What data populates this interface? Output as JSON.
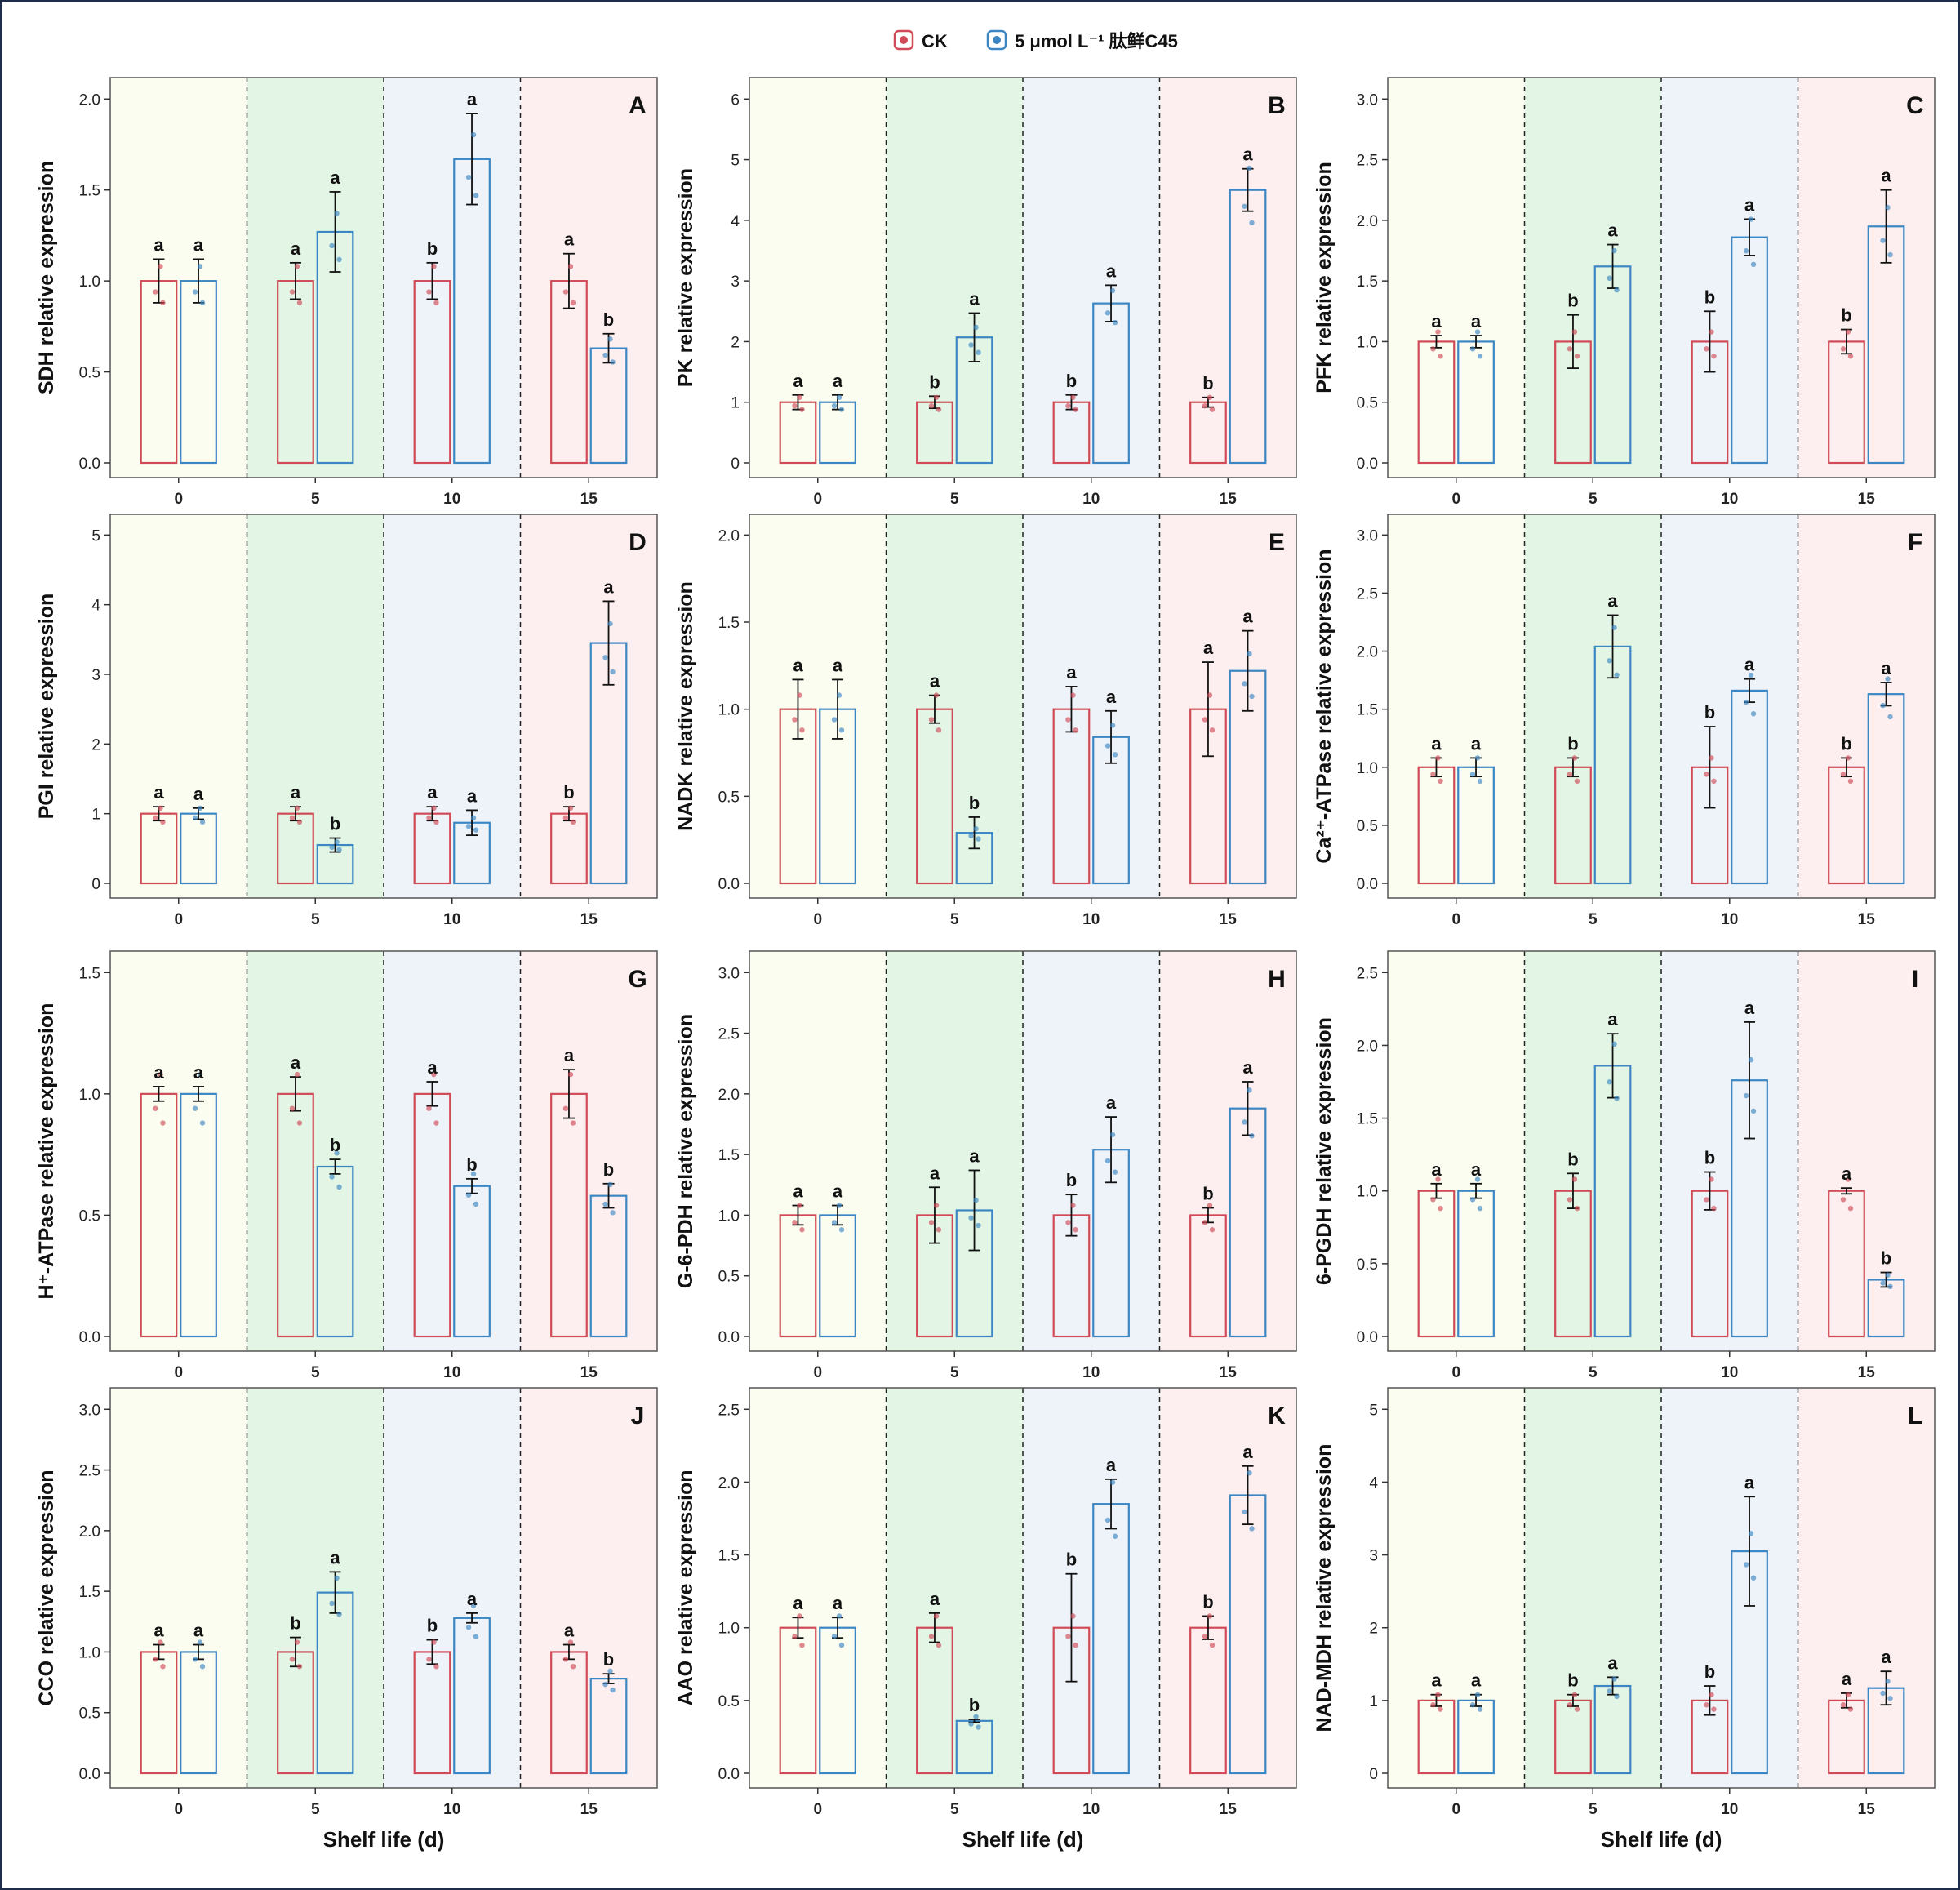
{
  "legend": {
    "items": [
      {
        "label": "CK",
        "color": "#d04a57"
      },
      {
        "label": "5 μmol L⁻¹ 肽鲜C45",
        "color": "#3c87c3"
      }
    ]
  },
  "colors": {
    "ck": "#d04a57",
    "treat": "#3c87c3",
    "bg0": "#fbfdf0",
    "bg5": "#e3f6e5",
    "bg10": "#eef3fa",
    "bg15": "#fdefef",
    "frame": "#1f2d4a"
  },
  "chart_data": [
    {
      "type": "bar",
      "panel": "A",
      "gene": "SDH",
      "title": "A",
      "xlabel": "",
      "ylabel": "SDH relative expression",
      "ylim": [
        0,
        2.1
      ],
      "ticks": [
        "0.0",
        "0.5",
        "1.0",
        "1.5",
        "2.0"
      ],
      "categories": [
        "0",
        "5",
        "10",
        "15"
      ],
      "series": [
        {
          "name": "CK",
          "values": [
            1.0,
            1.0,
            1.0,
            1.0
          ],
          "errors": [
            0.12,
            0.1,
            0.1,
            0.15
          ],
          "letters": [
            "a",
            "a",
            "b",
            "a"
          ]
        },
        {
          "name": "5 μmol L⁻¹ 肽鲜C45",
          "values": [
            1.0,
            1.27,
            1.67,
            0.63
          ],
          "errors": [
            0.12,
            0.22,
            0.25,
            0.08
          ],
          "letters": [
            "a",
            "a",
            "a",
            "b"
          ]
        }
      ]
    },
    {
      "type": "bar",
      "panel": "B",
      "gene": "PK",
      "title": "B",
      "xlabel": "",
      "ylabel": "PK relative expression",
      "ylim": [
        0,
        6.3
      ],
      "ticks": [
        "0",
        "1",
        "2",
        "3",
        "4",
        "5",
        "6"
      ],
      "categories": [
        "0",
        "5",
        "10",
        "15"
      ],
      "series": [
        {
          "name": "CK",
          "values": [
            1.0,
            1.0,
            1.0,
            1.0
          ],
          "errors": [
            0.12,
            0.1,
            0.12,
            0.08
          ],
          "letters": [
            "a",
            "b",
            "b",
            "b"
          ]
        },
        {
          "name": "5 μmol L⁻¹ 肽鲜C45",
          "values": [
            1.0,
            2.07,
            2.63,
            4.5
          ],
          "errors": [
            0.12,
            0.4,
            0.3,
            0.35
          ],
          "letters": [
            "a",
            "a",
            "a",
            "a"
          ]
        }
      ]
    },
    {
      "type": "bar",
      "panel": "C",
      "gene": "PFK",
      "title": "C",
      "xlabel": "",
      "ylabel": "PFK relative expression",
      "ylim": [
        0,
        3.15
      ],
      "ticks": [
        "0.0",
        "0.5",
        "1.0",
        "1.5",
        "2.0",
        "2.5",
        "3.0"
      ],
      "categories": [
        "0",
        "5",
        "10",
        "15"
      ],
      "series": [
        {
          "name": "CK",
          "values": [
            1.0,
            1.0,
            1.0,
            1.0
          ],
          "errors": [
            0.05,
            0.22,
            0.25,
            0.1
          ],
          "letters": [
            "a",
            "b",
            "b",
            "b"
          ]
        },
        {
          "name": "5 μmol L⁻¹ 肽鲜C45",
          "values": [
            1.0,
            1.62,
            1.86,
            1.95
          ],
          "errors": [
            0.05,
            0.18,
            0.15,
            0.3
          ],
          "letters": [
            "a",
            "a",
            "a",
            "a"
          ]
        }
      ]
    },
    {
      "type": "bar",
      "panel": "D",
      "gene": "PGI",
      "title": "D",
      "xlabel": "",
      "ylabel": "PGI relative expression",
      "ylim": [
        0,
        5.25
      ],
      "ticks": [
        "0",
        "1",
        "2",
        "3",
        "4",
        "5"
      ],
      "categories": [
        "0",
        "5",
        "10",
        "15"
      ],
      "series": [
        {
          "name": "CK",
          "values": [
            1.0,
            1.0,
            1.0,
            1.0
          ],
          "errors": [
            0.1,
            0.1,
            0.1,
            0.1
          ],
          "letters": [
            "a",
            "a",
            "a",
            "b"
          ]
        },
        {
          "name": "5 μmol L⁻¹ 肽鲜C45",
          "values": [
            1.0,
            0.55,
            0.87,
            3.45
          ],
          "errors": [
            0.08,
            0.1,
            0.18,
            0.6
          ],
          "letters": [
            "a",
            "b",
            "a",
            "a"
          ]
        }
      ]
    },
    {
      "type": "bar",
      "panel": "E",
      "gene": "NADK",
      "title": "E",
      "xlabel": "",
      "ylabel": "NADK relative expression",
      "ylim": [
        0,
        2.1
      ],
      "ticks": [
        "0.0",
        "0.5",
        "1.0",
        "1.5",
        "2.0"
      ],
      "categories": [
        "0",
        "5",
        "10",
        "15"
      ],
      "series": [
        {
          "name": "CK",
          "values": [
            1.0,
            1.0,
            1.0,
            1.0
          ],
          "errors": [
            0.17,
            0.08,
            0.13,
            0.27
          ],
          "letters": [
            "a",
            "a",
            "a",
            "a"
          ]
        },
        {
          "name": "5 μmol L⁻¹ 肽鲜C45",
          "values": [
            1.0,
            0.29,
            0.84,
            1.22
          ],
          "errors": [
            0.17,
            0.09,
            0.15,
            0.23
          ],
          "letters": [
            "a",
            "b",
            "a",
            "a"
          ]
        }
      ]
    },
    {
      "type": "bar",
      "panel": "F",
      "gene": "Ca²⁺-ATPase",
      "title": "F",
      "xlabel": "",
      "ylabel": "Ca²⁺-ATPase relative expression",
      "ylim": [
        0,
        3.15
      ],
      "ticks": [
        "0.0",
        "0.5",
        "1.0",
        "1.5",
        "2.0",
        "2.5",
        "3.0"
      ],
      "categories": [
        "0",
        "5",
        "10",
        "15"
      ],
      "series": [
        {
          "name": "CK",
          "values": [
            1.0,
            1.0,
            1.0,
            1.0
          ],
          "errors": [
            0.08,
            0.08,
            0.35,
            0.08
          ],
          "letters": [
            "a",
            "b",
            "b",
            "b"
          ]
        },
        {
          "name": "5 μmol L⁻¹ 肽鲜C45",
          "values": [
            1.0,
            2.04,
            1.66,
            1.63
          ],
          "errors": [
            0.08,
            0.27,
            0.1,
            0.1
          ],
          "letters": [
            "a",
            "a",
            "a",
            "a"
          ]
        }
      ]
    },
    {
      "type": "bar",
      "panel": "G",
      "gene": "H⁺-ATPase",
      "title": "G",
      "xlabel": "",
      "ylabel": "H⁺-ATPase relative expression",
      "ylim": [
        0,
        1.575
      ],
      "ticks": [
        "0.0",
        "0.5",
        "1.0",
        "1.5"
      ],
      "categories": [
        "0",
        "5",
        "10",
        "15"
      ],
      "series": [
        {
          "name": "CK",
          "values": [
            1.0,
            1.0,
            1.0,
            1.0
          ],
          "errors": [
            0.03,
            0.07,
            0.05,
            0.1
          ],
          "letters": [
            "a",
            "a",
            "a",
            "a"
          ]
        },
        {
          "name": "5 μmol L⁻¹ 肽鲜C45",
          "values": [
            1.0,
            0.7,
            0.62,
            0.58
          ],
          "errors": [
            0.03,
            0.03,
            0.03,
            0.05
          ],
          "letters": [
            "a",
            "b",
            "b",
            "b"
          ]
        }
      ]
    },
    {
      "type": "bar",
      "panel": "H",
      "gene": "G-6-PDH",
      "title": "H",
      "xlabel": "",
      "ylabel": "G-6-PDH relative expression",
      "ylim": [
        0,
        3.15
      ],
      "ticks": [
        "0.0",
        "0.5",
        "1.0",
        "1.5",
        "2.0",
        "2.5",
        "3.0"
      ],
      "categories": [
        "0",
        "5",
        "10",
        "15"
      ],
      "series": [
        {
          "name": "CK",
          "values": [
            1.0,
            1.0,
            1.0,
            1.0
          ],
          "errors": [
            0.08,
            0.23,
            0.17,
            0.06
          ],
          "letters": [
            "a",
            "a",
            "b",
            "b"
          ]
        },
        {
          "name": "5 μmol L⁻¹ 肽鲜C45",
          "values": [
            1.0,
            1.04,
            1.54,
            1.88
          ],
          "errors": [
            0.08,
            0.33,
            0.27,
            0.22
          ],
          "letters": [
            "a",
            "a",
            "a",
            "a"
          ]
        }
      ]
    },
    {
      "type": "bar",
      "panel": "I",
      "gene": "6-PGDH",
      "title": "I",
      "xlabel": "",
      "ylabel": "6-PGDH relative expression",
      "ylim": [
        0,
        2.625
      ],
      "ticks": [
        "0.0",
        "0.5",
        "1.0",
        "1.5",
        "2.0",
        "2.5"
      ],
      "categories": [
        "0",
        "5",
        "10",
        "15"
      ],
      "series": [
        {
          "name": "CK",
          "values": [
            1.0,
            1.0,
            1.0,
            1.0
          ],
          "errors": [
            0.05,
            0.12,
            0.13,
            0.02
          ],
          "letters": [
            "a",
            "b",
            "b",
            "a"
          ]
        },
        {
          "name": "5 μmol L⁻¹ 肽鲜C45",
          "values": [
            1.0,
            1.86,
            1.76,
            0.39
          ],
          "errors": [
            0.05,
            0.22,
            0.4,
            0.05
          ],
          "letters": [
            "a",
            "a",
            "a",
            "b"
          ]
        }
      ]
    },
    {
      "type": "bar",
      "panel": "J",
      "gene": "CCO",
      "title": "J",
      "xlabel": "Shelf life (d)",
      "ylabel": "CCO relative expression",
      "ylim": [
        0,
        3.15
      ],
      "ticks": [
        "0.0",
        "0.5",
        "1.0",
        "1.5",
        "2.0",
        "2.5",
        "3.0"
      ],
      "categories": [
        "0",
        "5",
        "10",
        "15"
      ],
      "series": [
        {
          "name": "CK",
          "values": [
            1.0,
            1.0,
            1.0,
            1.0
          ],
          "errors": [
            0.06,
            0.12,
            0.1,
            0.06
          ],
          "letters": [
            "a",
            "b",
            "b",
            "a"
          ]
        },
        {
          "name": "5 μmol L⁻¹ 肽鲜C45",
          "values": [
            1.0,
            1.49,
            1.28,
            0.78
          ],
          "errors": [
            0.06,
            0.17,
            0.04,
            0.04
          ],
          "letters": [
            "a",
            "a",
            "a",
            "b"
          ]
        }
      ]
    },
    {
      "type": "bar",
      "panel": "K",
      "gene": "AAO",
      "title": "K",
      "xlabel": "Shelf life (d)",
      "ylabel": "AAO relative expression",
      "ylim": [
        0,
        2.625
      ],
      "ticks": [
        "0.0",
        "0.5",
        "1.0",
        "1.5",
        "2.0",
        "2.5"
      ],
      "categories": [
        "0",
        "5",
        "10",
        "15"
      ],
      "series": [
        {
          "name": "CK",
          "values": [
            1.0,
            1.0,
            1.0,
            1.0
          ],
          "errors": [
            0.07,
            0.1,
            0.37,
            0.08
          ],
          "letters": [
            "a",
            "a",
            "b",
            "b"
          ]
        },
        {
          "name": "5 μmol L⁻¹ 肽鲜C45",
          "values": [
            1.0,
            0.36,
            1.85,
            1.91
          ],
          "errors": [
            0.07,
            0.01,
            0.17,
            0.2
          ],
          "letters": [
            "a",
            "b",
            "a",
            "a"
          ]
        }
      ]
    },
    {
      "type": "bar",
      "panel": "L",
      "gene": "NAD-MDH",
      "title": "L",
      "xlabel": "Shelf life (d)",
      "ylabel": "NAD-MDH relative expression",
      "ylim": [
        0,
        5.25
      ],
      "ticks": [
        "0",
        "1",
        "2",
        "3",
        "4",
        "5"
      ],
      "categories": [
        "0",
        "5",
        "10",
        "15"
      ],
      "series": [
        {
          "name": "CK",
          "values": [
            1.0,
            1.0,
            1.0,
            1.0
          ],
          "errors": [
            0.08,
            0.08,
            0.2,
            0.1
          ],
          "letters": [
            "a",
            "b",
            "b",
            "a"
          ]
        },
        {
          "name": "5 μmol L⁻¹ 肽鲜C45",
          "values": [
            1.0,
            1.2,
            3.05,
            1.17
          ],
          "errors": [
            0.08,
            0.12,
            0.75,
            0.23
          ],
          "letters": [
            "a",
            "a",
            "a",
            "a"
          ]
        }
      ]
    }
  ]
}
